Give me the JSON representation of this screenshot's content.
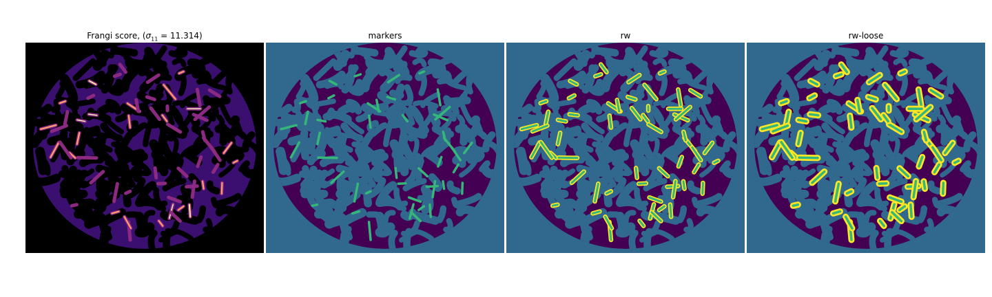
{
  "panels": [
    {
      "title_prefix": "Frangi score, (",
      "title_sigma": "σ",
      "title_sub": "11",
      "title_suffix": " = 11.314)",
      "kind": "frangi"
    },
    {
      "title": "markers",
      "kind": "markers"
    },
    {
      "title": "rw",
      "kind": "rw"
    },
    {
      "title": "rw-loose",
      "kind": "rw-loose"
    }
  ],
  "colors": {
    "frangi_background": "#000000",
    "frangi_low": "#3b0f70",
    "frangi_mid": "#8c2981",
    "frangi_high": "#fe9f6d",
    "frangi_peak": "#fcfdbf",
    "label_background": "#31688e",
    "label_pores": "#440154",
    "label_marker": "#35b779",
    "label_segment": "#fde725"
  }
}
